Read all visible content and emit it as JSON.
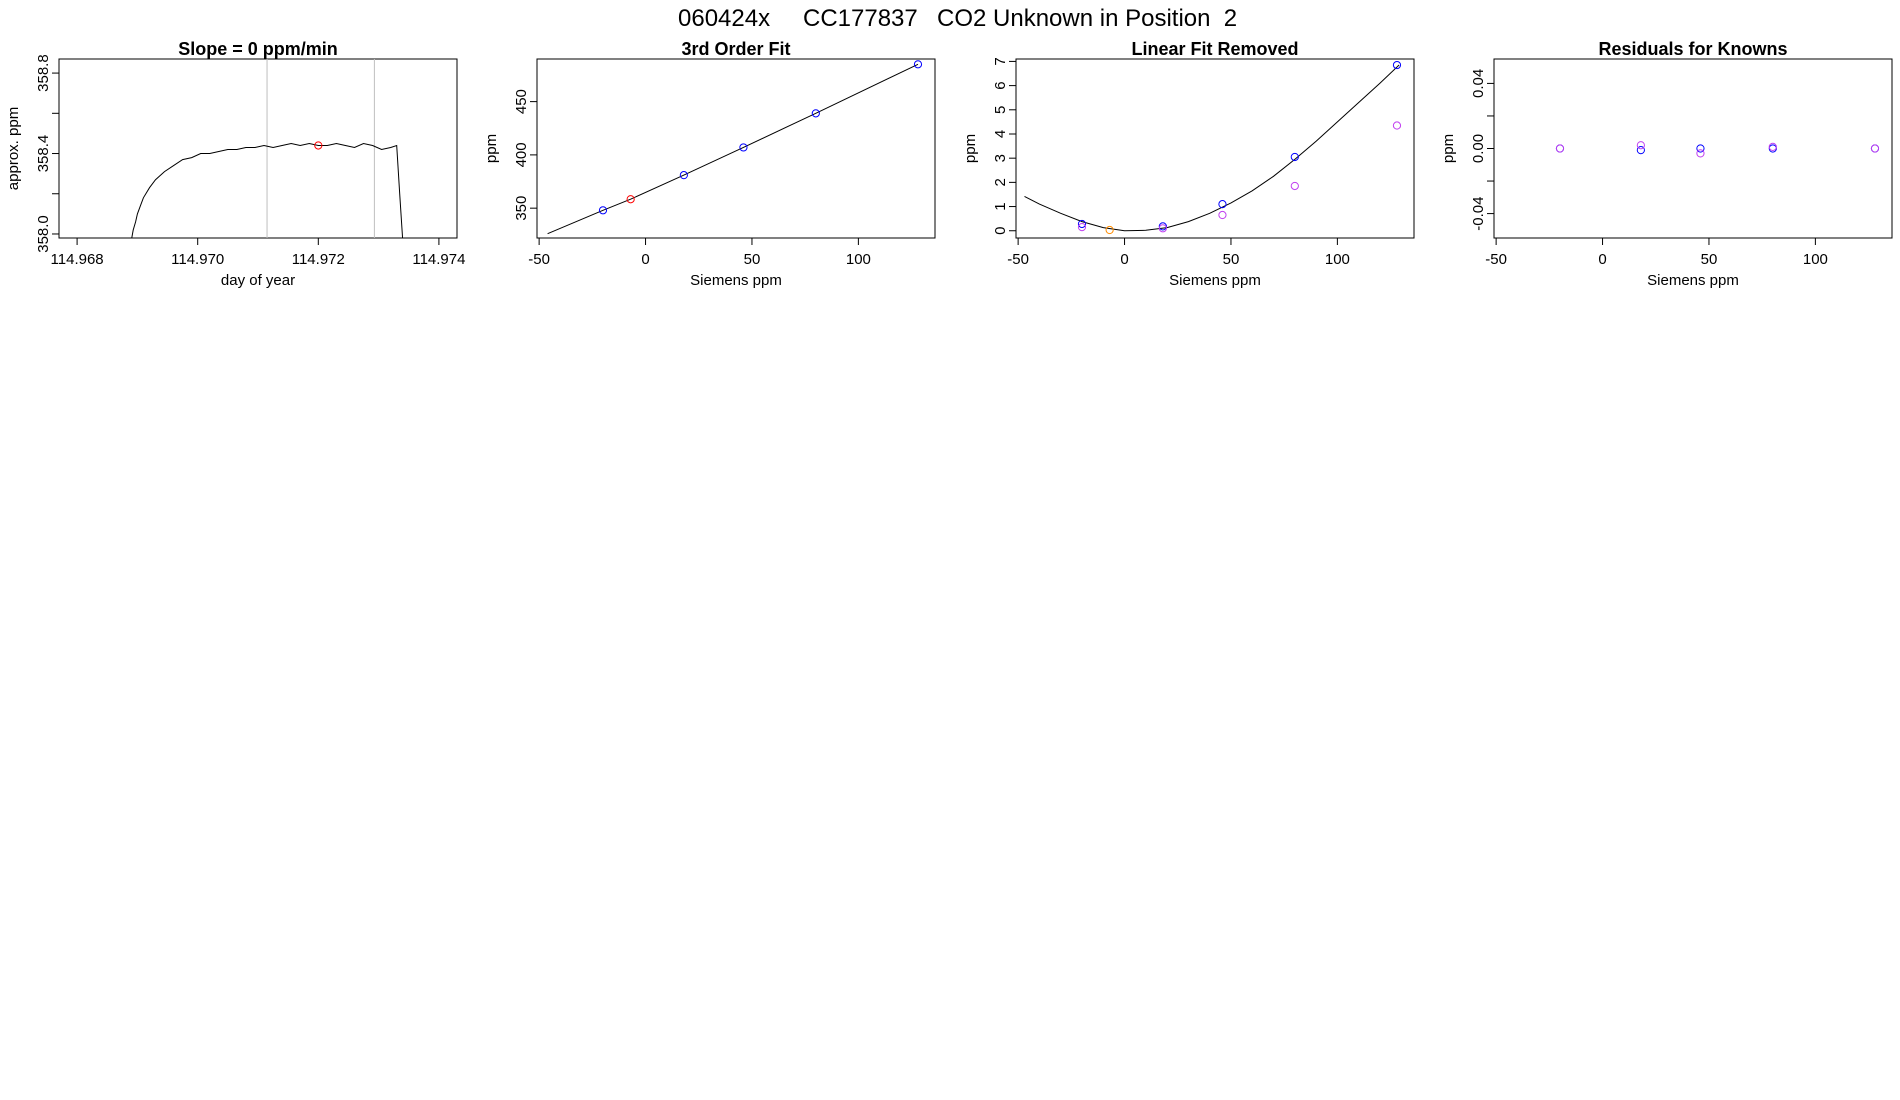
{
  "page": {
    "title_parts": [
      "060424x",
      "CC177837",
      "CO2 Unknown in Position  2"
    ]
  },
  "colors": {
    "standard": "#0000ff",
    "unknown": "#ff0000",
    "orange": "#ff8c00",
    "magenta": "#c040f0",
    "line": "#000000",
    "vline": "#bebebe"
  },
  "chart_data": [
    {
      "type": "line",
      "title": "Slope =  0  ppm/min",
      "xlabel": "day of year",
      "ylabel": "approx. ppm",
      "xlim": [
        114.9677,
        114.9743
      ],
      "ylim": [
        357.98,
        358.87
      ],
      "xticks": [
        114.968,
        114.97,
        114.972,
        114.974
      ],
      "xtick_labels": [
        "114.968",
        "114.970",
        "114.972",
        "114.974"
      ],
      "yticks": [
        358.0,
        358.2,
        358.4,
        358.6,
        358.8
      ],
      "ytick_labels": [
        "358.0",
        "",
        "358.4",
        "",
        "358.8"
      ],
      "vlines": [
        114.97115,
        114.97293
      ],
      "series": [
        {
          "kind": "line",
          "x": [
            114.9689,
            114.96893,
            114.96897,
            114.969,
            114.96905,
            114.9691,
            114.9692,
            114.9693,
            114.96945,
            114.9696,
            114.96975,
            114.9699,
            114.97005,
            114.9702,
            114.97035,
            114.9705,
            114.97065,
            114.9708,
            114.97095,
            114.9711,
            114.97125,
            114.9714,
            114.97155,
            114.9717,
            114.97185,
            114.972,
            114.97215,
            114.9723,
            114.97245,
            114.9726,
            114.97275,
            114.9729,
            114.97305,
            114.9732,
            114.9733,
            114.97335,
            114.9734
          ],
          "y": [
            357.97,
            358.02,
            358.06,
            358.1,
            358.14,
            358.18,
            358.23,
            358.27,
            358.31,
            358.34,
            358.37,
            358.38,
            358.4,
            358.4,
            358.41,
            358.42,
            358.42,
            358.43,
            358.43,
            358.44,
            358.43,
            358.44,
            358.45,
            358.44,
            358.45,
            358.44,
            358.44,
            358.45,
            358.44,
            358.43,
            358.45,
            358.44,
            358.42,
            358.43,
            358.44,
            358.2,
            357.97
          ]
        },
        {
          "kind": "points",
          "x": [
            114.972
          ],
          "y": [
            358.44
          ],
          "color": "#ff0000"
        }
      ]
    },
    {
      "type": "scatter",
      "title": "3rd Order Fit",
      "xlabel": "Siemens ppm",
      "ylabel": "ppm",
      "xlim": [
        -51,
        136
      ],
      "ylim": [
        322,
        490
      ],
      "xticks": [
        -50,
        0,
        50,
        100
      ],
      "xtick_labels": [
        "-50",
        "0",
        "50",
        "100"
      ],
      "yticks": [
        350,
        400,
        450
      ],
      "ytick_labels": [
        "350",
        "400",
        "450"
      ],
      "series": [
        {
          "kind": "line",
          "x": [
            -46,
            -20,
            -7,
            18,
            46,
            80,
            128
          ],
          "y": [
            326,
            348,
            358.4,
            381,
            407,
            439,
            485
          ]
        },
        {
          "kind": "points",
          "x": [
            -20,
            18,
            46,
            80,
            128
          ],
          "y": [
            348,
            381,
            407,
            439,
            485
          ],
          "color": "#0000ff"
        },
        {
          "kind": "points",
          "x": [
            -7
          ],
          "y": [
            358.4
          ],
          "color": "#ff0000"
        }
      ]
    },
    {
      "type": "scatter",
      "title": "Linear Fit Removed",
      "xlabel": "Siemens ppm",
      "ylabel": "ppm",
      "xlim": [
        -51,
        136
      ],
      "ylim": [
        -0.3,
        7.1
      ],
      "xticks": [
        -50,
        0,
        50,
        100
      ],
      "xtick_labels": [
        "-50",
        "0",
        "50",
        "100"
      ],
      "yticks": [
        0,
        1,
        2,
        3,
        4,
        5,
        6,
        7
      ],
      "ytick_labels": [
        "0",
        "1",
        "2",
        "3",
        "4",
        "5",
        "6",
        "7"
      ],
      "series": [
        {
          "kind": "line",
          "x": [
            -47,
            -40,
            -30,
            -20,
            -10,
            0,
            10,
            20,
            30,
            40,
            50,
            60,
            70,
            80,
            90,
            100,
            110,
            120,
            129
          ],
          "y": [
            1.42,
            1.1,
            0.72,
            0.38,
            0.13,
            0.0,
            0.02,
            0.13,
            0.38,
            0.72,
            1.15,
            1.65,
            2.25,
            2.95,
            3.7,
            4.5,
            5.3,
            6.1,
            6.85
          ]
        },
        {
          "kind": "points",
          "x": [
            -20,
            18,
            46,
            80,
            128
          ],
          "y": [
            0.28,
            0.18,
            1.1,
            3.05,
            6.85
          ],
          "color": "#0000ff"
        },
        {
          "kind": "points",
          "x": [
            -20,
            18,
            46,
            80,
            128
          ],
          "y": [
            0.15,
            0.1,
            0.65,
            1.85,
            4.35
          ],
          "color": "#c040f0"
        },
        {
          "kind": "points",
          "x": [
            -7
          ],
          "y": [
            0.03
          ],
          "color": "#ff8c00"
        }
      ]
    },
    {
      "type": "scatter",
      "title": "Residuals for Knowns",
      "xlabel": "Siemens ppm",
      "ylabel": "ppm",
      "xlim": [
        -51,
        136
      ],
      "ylim": [
        -0.055,
        0.055
      ],
      "xticks": [
        -50,
        0,
        50,
        100
      ],
      "xtick_labels": [
        "-50",
        "0",
        "50",
        "100"
      ],
      "yticks": [
        -0.04,
        -0.02,
        0.0,
        0.02,
        0.04
      ],
      "ytick_labels": [
        "-0.04",
        "",
        "0.00",
        "",
        "0.04"
      ],
      "series": [
        {
          "kind": "points",
          "x": [
            -20,
            18,
            46,
            80,
            128
          ],
          "y": [
            0.0,
            -0.001,
            0.0,
            0.0,
            0.0
          ],
          "color": "#0000ff"
        },
        {
          "kind": "points",
          "x": [
            -20,
            18,
            46,
            80,
            128
          ],
          "y": [
            0.0,
            0.002,
            -0.003,
            0.001,
            0.0
          ],
          "color": "#c040f0"
        }
      ]
    }
  ]
}
